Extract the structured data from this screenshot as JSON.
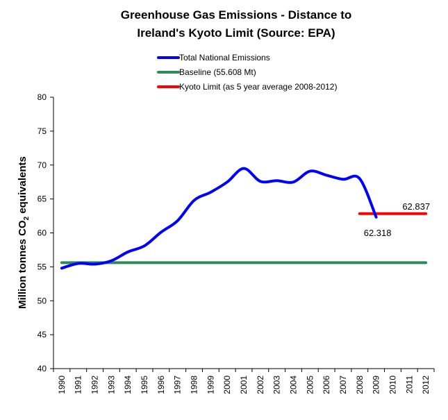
{
  "chart_data": {
    "type": "line",
    "title_lines": [
      "Greenhouse Gas Emissions - Distance to",
      "Ireland's Kyoto Limit (Source: EPA)"
    ],
    "xlabel": "",
    "ylabel_main": "Million tonnes CO",
    "ylabel_sub": "2",
    "ylabel_tail": " equivalents",
    "ylim": [
      40,
      80
    ],
    "ytick_step": 5,
    "yticks": [
      "40",
      "45",
      "50",
      "55",
      "60",
      "65",
      "70",
      "75",
      "80"
    ],
    "categories": [
      "1990",
      "1991",
      "1992",
      "1993",
      "1994",
      "1995",
      "1996",
      "1997",
      "1998",
      "1999",
      "2000",
      "2001",
      "2002",
      "2003",
      "2004",
      "2005",
      "2006",
      "2007",
      "2008",
      "2009",
      "2010",
      "2011",
      "2012"
    ],
    "grid": false,
    "legend_position": "top-center",
    "series": [
      {
        "name": "Total National Emissions",
        "color": "#0000ff",
        "smooth": true,
        "values": [
          54.8,
          55.5,
          55.4,
          55.9,
          57.2,
          58.1,
          60.1,
          61.8,
          64.8,
          66.0,
          67.5,
          69.5,
          67.6,
          67.7,
          67.5,
          69.1,
          68.5,
          67.9,
          68.0,
          62.318,
          null,
          null,
          null
        ]
      },
      {
        "name": "Baseline (55.608  Mt)",
        "color": "#2e8b57",
        "smooth": false,
        "values": [
          55.608,
          55.608,
          55.608,
          55.608,
          55.608,
          55.608,
          55.608,
          55.608,
          55.608,
          55.608,
          55.608,
          55.608,
          55.608,
          55.608,
          55.608,
          55.608,
          55.608,
          55.608,
          55.608,
          55.608,
          55.608,
          55.608,
          55.608
        ]
      },
      {
        "name": "Kyoto Limit (as 5 year average 2008-2012)",
        "color": "#ff0000",
        "smooth": false,
        "values": [
          null,
          null,
          null,
          null,
          null,
          null,
          null,
          null,
          null,
          null,
          null,
          null,
          null,
          null,
          null,
          null,
          null,
          null,
          62.837,
          62.837,
          62.837,
          62.837,
          62.837
        ]
      }
    ],
    "annotations": [
      {
        "text": "62.318",
        "series": "Total National Emissions",
        "category": "2009",
        "value": 62.318,
        "placement": "below"
      },
      {
        "text": "62.837",
        "series": "Kyoto Limit (as 5 year average 2008-2012)",
        "category": "2012",
        "value": 62.837,
        "placement": "above-left"
      }
    ]
  }
}
